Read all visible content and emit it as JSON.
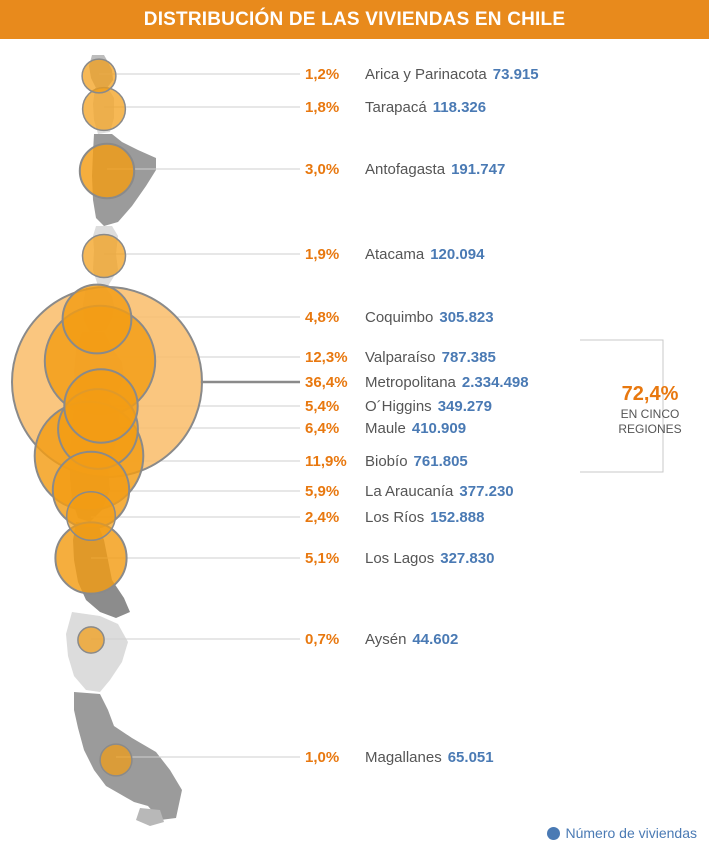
{
  "title": "DISTRIBUCIÓN DE LAS VIVIENDAS EN CHILE",
  "colors": {
    "header": "#e88a1c",
    "percent": "#e8780f",
    "value": "#4a7ab4",
    "bubble_big": "#f9be6d",
    "bubble_small": "#f39c14"
  },
  "chart_data": {
    "type": "bubble-map",
    "title": "DISTRIBUCIÓN DE LAS VIVIENDAS EN CHILE",
    "regions": [
      {
        "name": "Arica y Parinacota",
        "percent": "1,2%",
        "value": "73.915",
        "num": 73915
      },
      {
        "name": "Tarapacá",
        "percent": "1,8%",
        "value": "118.326",
        "num": 118326
      },
      {
        "name": "Antofagasta",
        "percent": "3,0%",
        "value": "191.747",
        "num": 191747
      },
      {
        "name": "Atacama",
        "percent": "1,9%",
        "value": "120.094",
        "num": 120094
      },
      {
        "name": "Coquimbo",
        "percent": "4,8%",
        "value": "305.823",
        "num": 305823
      },
      {
        "name": "Valparaíso",
        "percent": "12,3%",
        "value": "787.385",
        "num": 787385
      },
      {
        "name": "Metropolitana",
        "percent": "36,4%",
        "value": "2.334.498",
        "num": 2334498
      },
      {
        "name": "O´Higgins",
        "percent": "5,4%",
        "value": "349.279",
        "num": 349279
      },
      {
        "name": "Maule",
        "percent": "6,4%",
        "value": "410.909",
        "num": 410909
      },
      {
        "name": "Biobío",
        "percent": "11,9%",
        "value": "761.805",
        "num": 761805
      },
      {
        "name": "La Araucanía",
        "percent": "5,9%",
        "value": "377.230",
        "num": 377230
      },
      {
        "name": "Los Ríos",
        "percent": "2,4%",
        "value": "152.888",
        "num": 152888
      },
      {
        "name": "Los Lagos",
        "percent": "5,1%",
        "value": "327.830",
        "num": 327830
      },
      {
        "name": "Aysén",
        "percent": "0,7%",
        "value": "44.602",
        "num": 44602
      },
      {
        "name": "Magallanes",
        "percent": "1,0%",
        "value": "65.051",
        "num": 65051
      }
    ],
    "annotation": {
      "percent": "72,4%",
      "line1": "EN CINCO",
      "line2": "REGIONES"
    },
    "legend": "Número de viviendas"
  }
}
